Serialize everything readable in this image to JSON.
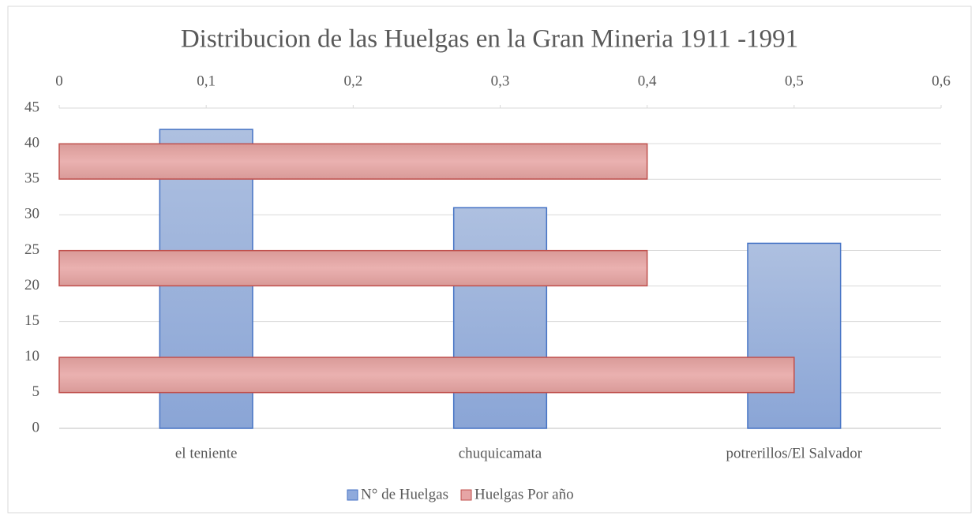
{
  "chart_data": {
    "type": "bar",
    "title": "Distribucion de las Huelgas en la Gran Mineria 1911 -1991",
    "categories": [
      "el teniente",
      "chuquicamata",
      "potrerillos/El Salvador"
    ],
    "series": [
      {
        "name": "N° de Huelgas",
        "color": "#8faadc",
        "values": [
          42,
          31,
          26
        ]
      },
      {
        "name": "Huelgas Por año",
        "color": "#e6a5a5",
        "values": [
          0.5,
          0.4,
          0.4
        ],
        "axis": "x2",
        "orientation": "horizontal"
      }
    ],
    "ylim": [
      0,
      45
    ],
    "yticks": [
      0,
      5,
      10,
      15,
      20,
      25,
      30,
      35,
      40,
      45
    ],
    "x2lim": [
      0,
      0.6
    ],
    "x2ticks": [
      0,
      {
        "value": 0.1,
        "label": "0,1"
      },
      {
        "value": 0.2,
        "label": "0,2"
      },
      {
        "value": 0.3,
        "label": "0,3"
      },
      {
        "value": 0.4,
        "label": "0,4"
      },
      {
        "value": 0.5,
        "label": "0,5"
      },
      {
        "value": 0.6,
        "label": "0,6"
      }
    ],
    "grid": true,
    "legend": "bottom"
  }
}
